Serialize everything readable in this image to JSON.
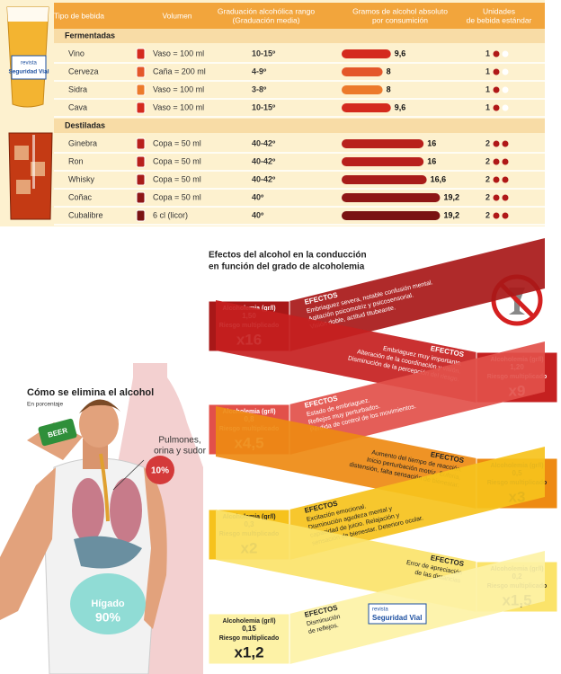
{
  "table": {
    "headers": [
      [
        "Tipo de bebida"
      ],
      [
        "Volumen"
      ],
      [
        "Graduación alcohólica rango",
        "(Graduación media)"
      ],
      [
        "Gramos de alcohol absoluto",
        "por consumición"
      ],
      [
        "Unidades",
        "de bebida estándar"
      ]
    ],
    "groups": [
      {
        "name": "Fermentadas",
        "rows": [
          {
            "drink": "Vino",
            "volume": "Vaso = 100 ml",
            "grade": "10-15º",
            "grams": 9.6,
            "grams_label": "9,6",
            "units": 1,
            "color": "#d42a1e"
          },
          {
            "drink": "Cerveza",
            "volume": "Caña = 200 ml",
            "grade": "4-9º",
            "grams": 8,
            "units": 1,
            "color": "#e4572a"
          },
          {
            "drink": "Sidra",
            "volume": "Vaso = 100 ml",
            "grade": "3-8º",
            "grams": 8,
            "units": 1,
            "color": "#ec7a2b"
          },
          {
            "drink": "Cava",
            "volume": "Vaso = 100 ml",
            "grade": "10-15º",
            "grams": 9.6,
            "grams_label": "9,6",
            "units": 1,
            "color": "#d42a1e"
          }
        ]
      },
      {
        "name": "Destiladas",
        "rows": [
          {
            "drink": "Ginebra",
            "volume": "Copa = 50 ml",
            "grade": "40-42º",
            "grams": 16,
            "units": 2,
            "color": "#b8201c"
          },
          {
            "drink": "Ron",
            "volume": "Copa = 50 ml",
            "grade": "40-42º",
            "grams": 16,
            "units": 2,
            "color": "#b8201c"
          },
          {
            "drink": "Whisky",
            "volume": "Copa = 50 ml",
            "grade": "40-42º",
            "grams": 16.6,
            "grams_label": "16,6",
            "units": 2,
            "color": "#a81c1a"
          },
          {
            "drink": "Coñac",
            "volume": "Copa = 50 ml",
            "grade": "40º",
            "grams": 19.2,
            "grams_label": "19,2",
            "units": 2,
            "color": "#8e1616"
          },
          {
            "drink": "Cubalibre",
            "volume": "6 cl (licor)",
            "grade": "40º",
            "grams": 19.2,
            "grams_label": "19,2",
            "units": 2,
            "color": "#7a1212"
          }
        ]
      }
    ]
  },
  "logo": {
    "small": "revista",
    "big": "Seguridad Vial"
  },
  "effects": {
    "title": [
      "Efectos del alcohol en la conducción",
      "en función del grado de alcoholemia"
    ],
    "levels": [
      {
        "label": "Alcoholemia (gr/l)",
        "value": "1,50",
        "risk_label": "Riesgo multiplicado",
        "risk": "x16",
        "heading": "EFECTOS",
        "text": [
          "Embriaguez severa, notable confusión mental.",
          "Agitación psicomotriz y psicosensorial.",
          "Visión doble, actitud titubeante."
        ],
        "color": "#a81818"
      },
      {
        "label": "Alcoholemia (gr/l)",
        "value": "1,20",
        "risk_label": "Riesgo multiplicado",
        "risk": "x9",
        "heading": "EFECTOS",
        "text": [
          "Embriaguez muy importante.",
          "Alteración de la coordinación y visión.",
          "Disminución de la percepción del riesgo."
        ],
        "color": "#c52020"
      },
      {
        "label": "Alcoholemia (gr/l)",
        "value": "0,8",
        "risk_label": "Riesgo multiplicado",
        "risk": "x4,5",
        "heading": "EFECTOS",
        "text": [
          "Estado de embriaguez.",
          "Reflejos muy perturbados.",
          "Pérdida de control de los movimientos."
        ],
        "color": "#e2504a"
      },
      {
        "label": "Alcoholemia (gr/l)",
        "value": "0,5",
        "risk_label": "Riesgo multiplicado",
        "risk": "x3",
        "heading": "EFECTOS",
        "text": [
          "Aumento del tiempo de reacción.",
          "Inicio perturbación motriz. Euforia,",
          "distensión, falta sensación de bienestar."
        ],
        "color": "#ee8a12"
      },
      {
        "label": "Alcoholemia (gr/l)",
        "value": "0,3",
        "risk_label": "Riesgo multiplicado",
        "risk": "x2",
        "heading": "EFECTOS",
        "text": [
          "Excitación emocional.",
          "Disminución agudeza mental y",
          "capacidad de juicio. Relajación y",
          "sensación de bienestar. Deterioro ocular."
        ],
        "color": "#f6c21c"
      },
      {
        "label": "Alcoholemia (gr/l)",
        "value": "0,2",
        "risk_label": "Riesgo multiplicado",
        "risk": "x1,5",
        "heading": "EFECTOS",
        "text": [
          "Error de apreciación",
          "de las distancias"
        ],
        "color": "#fbe36a"
      },
      {
        "label": "Alcoholemia (gr/l)",
        "value": "0,15",
        "risk_label": "Riesgo multiplicado",
        "risk": "x1,2",
        "heading": "EFECTOS",
        "text": [
          "Disminución",
          "de reflejos."
        ],
        "color": "#fdf2a6"
      }
    ]
  },
  "elimination": {
    "title": "Cómo se elimina el alcohol",
    "subtitle": "En porcentaje",
    "can": "BEER",
    "lungs_label": [
      "Pulmones,",
      "orina y sudor"
    ],
    "lungs_value": "10%",
    "liver_label": "Hígado",
    "liver_value": "90%"
  }
}
